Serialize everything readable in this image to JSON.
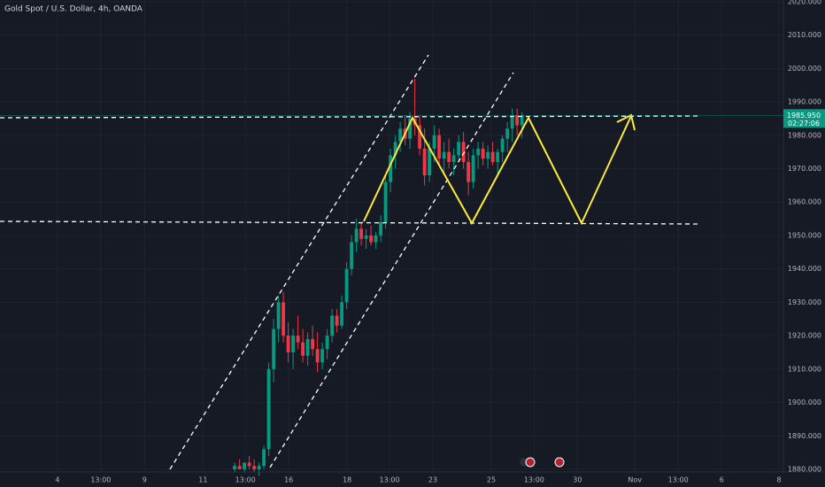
{
  "chart_data": {
    "type": "candlestick",
    "title": "Gold Spot / U.S. Dollar, 4h, OANDA",
    "open": [
      1880,
      1881,
      1880,
      1882,
      1881,
      1880,
      1881,
      1886,
      1910,
      1922,
      1930,
      1920,
      1915,
      1920,
      1918,
      1914,
      1919,
      1916,
      1912,
      1916,
      1920,
      1926,
      1923,
      1930,
      1940,
      1948,
      1952,
      1949,
      1950,
      1948,
      1950,
      1954,
      1966,
      1974,
      1978,
      1982,
      1979,
      1985,
      1983,
      1976,
      1968,
      1976,
      1980,
      1973,
      1975,
      1972,
      1974,
      1978,
      1972,
      1966,
      1974,
      1976,
      1973,
      1975,
      1972,
      1975,
      1979,
      1982,
      1986,
      1983
    ],
    "high": [
      1882,
      1883,
      1882,
      1884,
      1883,
      1882,
      1887,
      1912,
      1925,
      1932,
      1933,
      1924,
      1922,
      1926,
      1922,
      1921,
      1923,
      1921,
      1918,
      1922,
      1928,
      1928,
      1932,
      1942,
      1950,
      1955,
      1954,
      1952,
      1953,
      1951,
      1956,
      1968,
      1976,
      1980,
      1984,
      1986,
      1987,
      1997,
      1986,
      1982,
      1978,
      1983,
      1982,
      1978,
      1979,
      1976,
      1980,
      1981,
      1975,
      1976,
      1978,
      1978,
      1977,
      1978,
      1976,
      1980,
      1984,
      1988,
      1988,
      1987
    ],
    "low": [
      1879,
      1880,
      1879,
      1880,
      1879,
      1878,
      1880,
      1884,
      1906,
      1918,
      1918,
      1912,
      1910,
      1916,
      1912,
      1911,
      1914,
      1909,
      1910,
      1913,
      1918,
      1921,
      1922,
      1928,
      1938,
      1945,
      1947,
      1946,
      1947,
      1946,
      1948,
      1952,
      1963,
      1970,
      1975,
      1977,
      1976,
      1980,
      1974,
      1965,
      1966,
      1972,
      1971,
      1968,
      1970,
      1968,
      1972,
      1970,
      1962,
      1964,
      1970,
      1971,
      1970,
      1971,
      1968,
      1972,
      1975,
      1978,
      1980,
      1979
    ],
    "close": [
      1881,
      1880,
      1882,
      1881,
      1880,
      1881,
      1886,
      1910,
      1922,
      1930,
      1920,
      1915,
      1920,
      1918,
      1914,
      1919,
      1916,
      1912,
      1916,
      1920,
      1926,
      1923,
      1930,
      1940,
      1948,
      1952,
      1949,
      1950,
      1948,
      1950,
      1954,
      1966,
      1974,
      1978,
      1982,
      1979,
      1985,
      1983,
      1976,
      1968,
      1976,
      1980,
      1973,
      1975,
      1972,
      1974,
      1978,
      1972,
      1966,
      1974,
      1976,
      1973,
      1975,
      1972,
      1975,
      1979,
      1982,
      1986,
      1983,
      1986
    ],
    "up_color": "#089981",
    "down_color": "#f23645",
    "ylim": [
      1879.2,
      2020.5
    ],
    "yticks": [
      {
        "value": 1880,
        "label": "1880.000"
      },
      {
        "value": 1890,
        "label": "1890.000"
      },
      {
        "value": 1900,
        "label": "1900.000"
      },
      {
        "value": 1910,
        "label": "1910.000"
      },
      {
        "value": 1920,
        "label": "1920.000"
      },
      {
        "value": 1930,
        "label": "1930.000"
      },
      {
        "value": 1940,
        "label": "1940.000"
      },
      {
        "value": 1950,
        "label": "1950.000"
      },
      {
        "value": 1960,
        "label": "1960.000"
      },
      {
        "value": 1970,
        "label": "1970.000"
      },
      {
        "value": 1980,
        "label": "1980.000"
      },
      {
        "value": 1990,
        "label": "1990.000"
      },
      {
        "value": 2000,
        "label": "2000.000"
      },
      {
        "value": 2010,
        "label": "2010.000"
      },
      {
        "value": 2020,
        "label": "2020.000"
      }
    ],
    "xlim": [
      -48.2,
      112.7
    ],
    "xticks": [
      {
        "value": -36.4,
        "label": "4"
      },
      {
        "value": -27.5,
        "label": "13:00"
      },
      {
        "value": -18.5,
        "label": "9"
      },
      {
        "value": -6.5,
        "label": "11"
      },
      {
        "value": 2.2,
        "label": "13:00"
      },
      {
        "value": 11.1,
        "label": "16"
      },
      {
        "value": 23.1,
        "label": "18"
      },
      {
        "value": 31.8,
        "label": "13:00"
      },
      {
        "value": 40.7,
        "label": "23"
      },
      {
        "value": 52.7,
        "label": "25"
      },
      {
        "value": 61.5,
        "label": "13:00"
      },
      {
        "value": 70.4,
        "label": "30"
      },
      {
        "value": 82.2,
        "label": "Nov"
      },
      {
        "value": 91.1,
        "label": "13:00"
      },
      {
        "value": 100,
        "label": "6"
      },
      {
        "value": 111.8,
        "label": "8"
      }
    ],
    "grid": true,
    "price_tag": {
      "value": 1985.95,
      "label": "1985.950",
      "countdown": "02:27:06",
      "color": "#089981"
    }
  }
}
